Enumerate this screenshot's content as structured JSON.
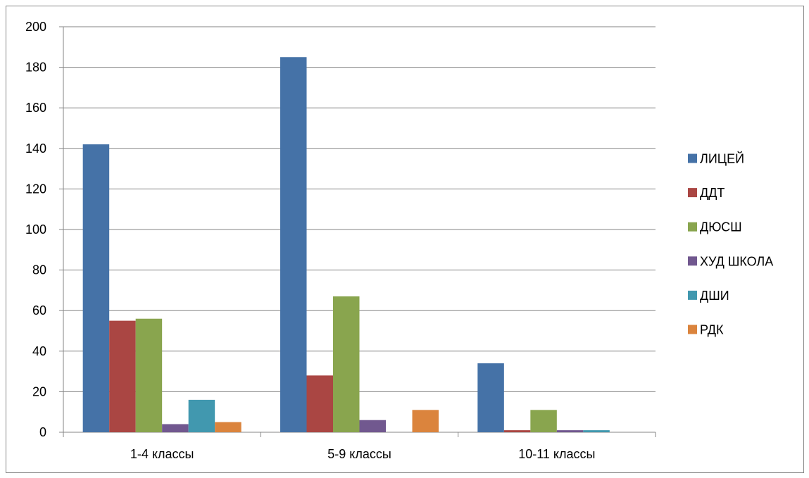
{
  "chart_data": {
    "type": "bar",
    "categories": [
      "1-4 классы",
      "5-9 классы",
      "10-11 классы"
    ],
    "series": [
      {
        "name": "ЛИЦЕЙ",
        "color": "#4572A7",
        "values": [
          142,
          185,
          34
        ]
      },
      {
        "name": "ДДТ",
        "color": "#AA4643",
        "values": [
          55,
          28,
          1
        ]
      },
      {
        "name": "ДЮСШ",
        "color": "#89A54E",
        "values": [
          56,
          67,
          11
        ]
      },
      {
        "name": "ХУД ШКОЛА",
        "color": "#71588F",
        "values": [
          4,
          6,
          1
        ]
      },
      {
        "name": "ДШИ",
        "color": "#4198AF",
        "values": [
          16,
          0,
          1
        ]
      },
      {
        "name": "РДК",
        "color": "#DB843D",
        "values": [
          5,
          11,
          0
        ]
      }
    ],
    "y_ticks": [
      "0",
      "20",
      "40",
      "60",
      "80",
      "100",
      "120",
      "140",
      "160",
      "180",
      "200"
    ],
    "ylim": [
      0,
      200
    ],
    "grid": true,
    "legend_position": "right"
  }
}
